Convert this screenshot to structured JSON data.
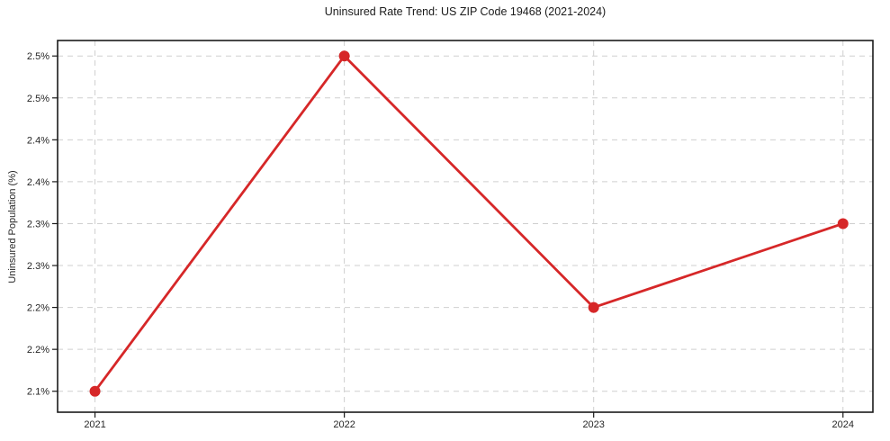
{
  "chart_data": {
    "type": "line",
    "title": "Uninsured Rate Trend: US ZIP Code 19468 (2021-2024)",
    "xlabel": "",
    "ylabel": "Uninsured Population (%)",
    "x": [
      2021,
      2022,
      2023,
      2024
    ],
    "xtick_labels": [
      "2021",
      "2022",
      "2023",
      "2024"
    ],
    "series": [
      {
        "name": "Uninsured rate",
        "values": [
          2.1,
          2.5,
          2.2,
          2.3
        ],
        "color": "#d62728",
        "marker": "circle"
      }
    ],
    "xlim": [
      2020.85,
      2024.12
    ],
    "ylim": [
      2.075,
      2.5185
    ],
    "yticks": [
      2.1,
      2.15,
      2.2,
      2.25,
      2.3,
      2.35,
      2.4,
      2.45,
      2.5
    ],
    "ytick_labels": [
      "2.1%",
      "2.2%",
      "2.2%",
      "2.3%",
      "2.3%",
      "2.4%",
      "2.4%",
      "2.5%",
      "2.5%"
    ],
    "grid": true,
    "grid_style": "dashed",
    "legend": "none",
    "colors": {
      "line": "#d62728",
      "grid": "#cfcfcf",
      "frame": "#1a1a1a",
      "text": "#262626",
      "background": "#ffffff"
    }
  }
}
